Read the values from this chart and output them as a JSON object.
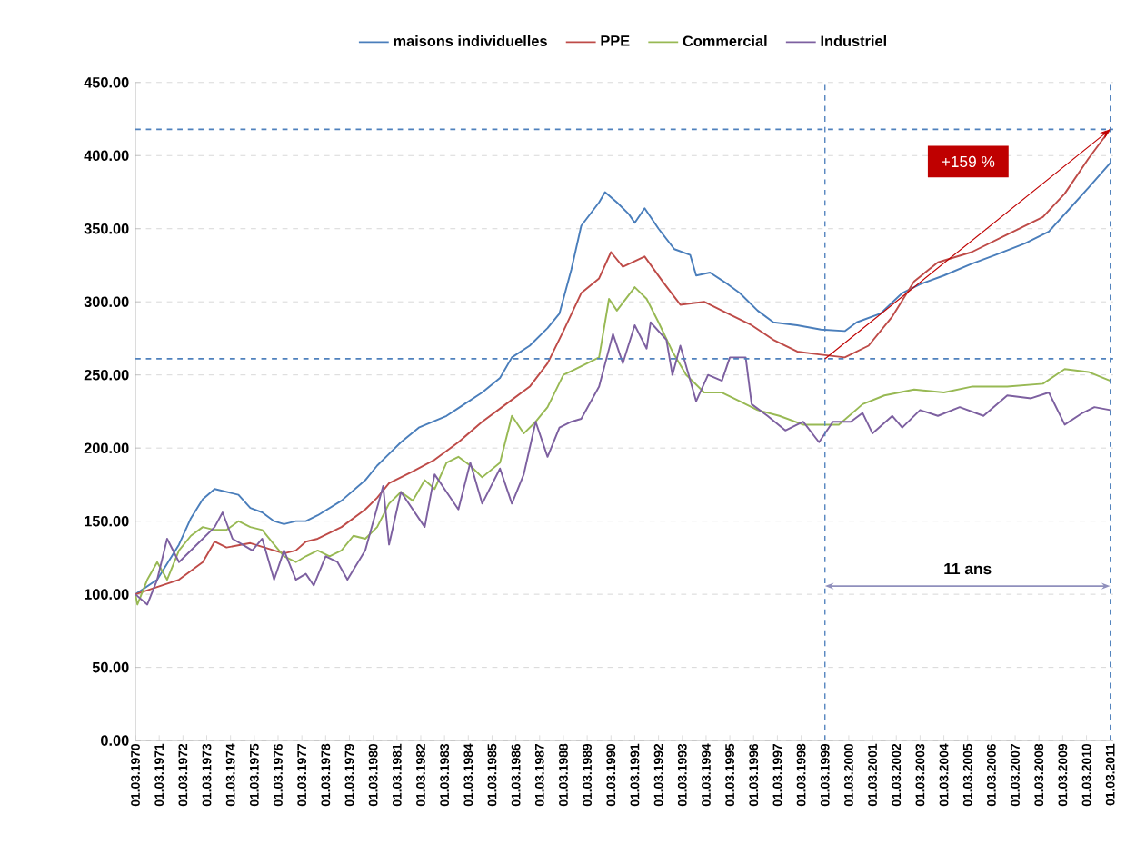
{
  "chart_data": {
    "type": "line",
    "xlim": [
      "1970-03-01",
      "2011-04-15"
    ],
    "ylim": [
      0,
      450
    ],
    "xticks": [
      {
        "value": "1970-03-01",
        "label": "01.03.1970"
      },
      {
        "value": "1971-03-01",
        "label": "01.03.1971"
      },
      {
        "value": "1972-03-01",
        "label": "01.03.1972"
      },
      {
        "value": "1973-03-01",
        "label": "01.03.1973"
      },
      {
        "value": "1974-03-01",
        "label": "01.03.1974"
      },
      {
        "value": "1975-03-01",
        "label": "01.03.1975"
      },
      {
        "value": "1976-03-01",
        "label": "01.03.1976"
      },
      {
        "value": "1977-03-01",
        "label": "01.03.1977"
      },
      {
        "value": "1978-03-01",
        "label": "01.03.1978"
      },
      {
        "value": "1979-03-01",
        "label": "01.03.1979"
      },
      {
        "value": "1980-03-01",
        "label": "01.03.1980"
      },
      {
        "value": "1981-03-01",
        "label": "01.03.1981"
      },
      {
        "value": "1982-03-01",
        "label": "01.03.1982"
      },
      {
        "value": "1983-03-01",
        "label": "01.03.1983"
      },
      {
        "value": "1984-03-01",
        "label": "01.03.1984"
      },
      {
        "value": "1985-03-01",
        "label": "01.03.1985"
      },
      {
        "value": "1986-03-01",
        "label": "01.03.1986"
      },
      {
        "value": "1987-03-01",
        "label": "01.03.1987"
      },
      {
        "value": "1988-03-01",
        "label": "01.03.1988"
      },
      {
        "value": "1989-03-01",
        "label": "01.03.1989"
      },
      {
        "value": "1990-03-01",
        "label": "01.03.1990"
      },
      {
        "value": "1991-03-01",
        "label": "01.03.1991"
      },
      {
        "value": "1992-03-01",
        "label": "01.03.1992"
      },
      {
        "value": "1993-03-01",
        "label": "01.03.1993"
      },
      {
        "value": "1994-03-01",
        "label": "01.03.1994"
      },
      {
        "value": "1995-03-01",
        "label": "01.03.1995"
      },
      {
        "value": "1996-03-01",
        "label": "01.03.1996"
      },
      {
        "value": "1997-03-01",
        "label": "01.03.1997"
      },
      {
        "value": "1998-03-01",
        "label": "01.03.1998"
      },
      {
        "value": "1999-03-01",
        "label": "01.03.1999"
      },
      {
        "value": "2000-03-01",
        "label": "01.03.2000"
      },
      {
        "value": "2001-03-01",
        "label": "01.03.2001"
      },
      {
        "value": "2002-03-01",
        "label": "01.03.2002"
      },
      {
        "value": "2003-03-01",
        "label": "01.03.2003"
      },
      {
        "value": "2004-03-01",
        "label": "01.03.2004"
      },
      {
        "value": "2005-03-01",
        "label": "01.03.2005"
      },
      {
        "value": "2006-03-01",
        "label": "01.03.2006"
      },
      {
        "value": "2007-03-01",
        "label": "01.03.2007"
      },
      {
        "value": "2008-03-01",
        "label": "01.03.2008"
      },
      {
        "value": "2009-03-01",
        "label": "01.03.2009"
      },
      {
        "value": "2010-03-01",
        "label": "01.03.2010"
      },
      {
        "value": "2011-03-01",
        "label": "01.03.2011"
      }
    ],
    "yticks": [
      {
        "value": 0,
        "label": "0.00"
      },
      {
        "value": 50,
        "label": "50.00"
      },
      {
        "value": 100,
        "label": "100.00"
      },
      {
        "value": 150,
        "label": "150.00"
      },
      {
        "value": 200,
        "label": "200.00"
      },
      {
        "value": 250,
        "label": "250.00"
      },
      {
        "value": 300,
        "label": "300.00"
      },
      {
        "value": 350,
        "label": "350.00"
      },
      {
        "value": 400,
        "label": "400.00"
      },
      {
        "value": 450,
        "label": "450.00"
      }
    ],
    "grid": "y",
    "legend": "top",
    "marker": "none",
    "line_style": "solid",
    "series": [
      {
        "name": "maisons individuelles",
        "color": "#4a7ebb",
        "x": [
          "1970-03",
          "1971-02",
          "1972-01",
          "1972-07",
          "1973-01",
          "1973-07",
          "1974-07",
          "1975-01",
          "1975-07",
          "1976-01",
          "1976-06",
          "1976-12",
          "1977-05",
          "1977-11",
          "1978-11",
          "1979-11",
          "1980-05",
          "1980-11",
          "1981-05",
          "1982-02",
          "1983-04",
          "1984-01",
          "1984-10",
          "1985-07",
          "1986-01",
          "1986-10",
          "1987-07",
          "1988-01",
          "1988-07",
          "1988-12",
          "1989-09",
          "1989-12",
          "1990-06",
          "1990-12",
          "1991-03",
          "1991-08",
          "1992-03",
          "1992-11",
          "1993-07",
          "1993-10",
          "1994-05",
          "1995-02",
          "1995-08",
          "1996-05",
          "1997-01",
          "1998-01",
          "1999-01",
          "2000-01",
          "2000-07",
          "2001-07",
          "2002-06",
          "2003-03",
          "2004-03",
          "2005-05",
          "2006-05",
          "2007-08",
          "2008-08",
          "2009-08",
          "2010-04",
          "2011-03"
        ],
        "values": [
          100,
          110,
          134,
          152,
          165,
          172,
          168,
          159,
          156,
          150,
          148,
          150,
          150,
          154,
          164,
          178,
          188,
          196,
          204,
          214,
          222,
          230,
          238,
          248,
          262,
          270,
          282,
          292,
          322,
          352,
          368,
          375,
          368,
          360,
          354,
          364,
          350,
          336,
          332,
          318,
          320,
          312,
          306,
          294,
          286,
          284,
          281,
          280,
          286,
          292,
          306,
          312,
          318,
          326,
          332,
          340,
          348,
          366,
          378,
          395
        ]
      },
      {
        "name": "PPE",
        "color": "#be4b48",
        "x": [
          "1970-03",
          "1971-02",
          "1972-01",
          "1973-01",
          "1973-07",
          "1974-01",
          "1975-01",
          "1976-01",
          "1976-06",
          "1976-12",
          "1977-05",
          "1977-11",
          "1978-11",
          "1979-11",
          "1980-05",
          "1980-11",
          "1981-11",
          "1982-10",
          "1983-10",
          "1984-10",
          "1985-10",
          "1986-10",
          "1987-07",
          "1988-03",
          "1988-12",
          "1989-09",
          "1990-03",
          "1990-09",
          "1991-08",
          "1992-05",
          "1993-02",
          "1994-02",
          "1995-02",
          "1996-02",
          "1997-01",
          "1998-01",
          "1998-12",
          "2000-01",
          "2001-01",
          "2002-01",
          "2002-12",
          "2003-12",
          "2005-05",
          "2006-11",
          "2008-05",
          "2009-04",
          "2010-04",
          "2011-03"
        ],
        "values": [
          100,
          105,
          110,
          122,
          136,
          132,
          135,
          130,
          128,
          130,
          136,
          138,
          146,
          158,
          166,
          176,
          184,
          192,
          204,
          218,
          230,
          242,
          258,
          280,
          306,
          316,
          334,
          324,
          331,
          314,
          298,
          300,
          292,
          284,
          274,
          266,
          264,
          262,
          270,
          290,
          314,
          327,
          334,
          346,
          358,
          374,
          398,
          418
        ]
      },
      {
        "name": "Commercial",
        "color": "#98b954",
        "x": [
          "1970-03",
          "1970-04",
          "1970-09",
          "1971-02",
          "1971-07",
          "1972-01",
          "1972-07",
          "1973-01",
          "1973-07",
          "1974-01",
          "1974-07",
          "1975-01",
          "1975-07",
          "1976-01",
          "1976-06",
          "1976-12",
          "1977-05",
          "1977-11",
          "1978-05",
          "1978-11",
          "1979-05",
          "1979-11",
          "1980-05",
          "1980-11",
          "1981-05",
          "1981-11",
          "1982-05",
          "1982-10",
          "1983-04",
          "1983-10",
          "1984-04",
          "1984-10",
          "1985-07",
          "1986-01",
          "1986-07",
          "1987-01",
          "1987-07",
          "1988-03",
          "1988-09",
          "1989-03",
          "1989-09",
          "1990-02",
          "1990-06",
          "1991-03",
          "1991-09",
          "1992-03",
          "1992-10",
          "1993-05",
          "1994-02",
          "1994-11",
          "1995-08",
          "1996-05",
          "1997-04",
          "1998-04",
          "1999-01",
          "1999-10",
          "2000-10",
          "2001-09",
          "2002-12",
          "2004-03",
          "2005-05",
          "2006-11",
          "2008-05",
          "2009-04",
          "2010-04",
          "2011-03"
        ],
        "values": [
          100,
          93,
          110,
          122,
          110,
          130,
          140,
          146,
          144,
          144,
          150,
          146,
          144,
          134,
          126,
          122,
          126,
          130,
          126,
          130,
          140,
          138,
          146,
          162,
          170,
          164,
          178,
          172,
          190,
          194,
          188,
          180,
          190,
          222,
          210,
          218,
          228,
          250,
          254,
          258,
          262,
          302,
          294,
          310,
          302,
          286,
          266,
          250,
          238,
          238,
          232,
          226,
          222,
          216,
          216,
          216,
          230,
          236,
          240,
          238,
          242,
          242,
          244,
          254,
          252,
          246
        ]
      },
      {
        "name": "Industriel",
        "color": "#7d60a0",
        "x": [
          "1970-03",
          "1970-09",
          "1971-02",
          "1971-07",
          "1972-01",
          "1972-07",
          "1973-01",
          "1973-07",
          "1973-11",
          "1974-04",
          "1974-09",
          "1975-02",
          "1975-07",
          "1976-01",
          "1976-06",
          "1976-12",
          "1977-05",
          "1977-09",
          "1978-03",
          "1978-09",
          "1979-02",
          "1979-11",
          "1980-08",
          "1980-11",
          "1981-05",
          "1981-11",
          "1982-05",
          "1982-10",
          "1983-04",
          "1983-10",
          "1984-04",
          "1984-10",
          "1985-07",
          "1986-01",
          "1986-07",
          "1987-01",
          "1987-07",
          "1988-01",
          "1988-07",
          "1988-12",
          "1989-09",
          "1990-04",
          "1990-09",
          "1991-03",
          "1991-09",
          "1991-11",
          "1992-07",
          "1992-10",
          "1993-02",
          "1993-10",
          "1994-04",
          "1994-11",
          "1995-03",
          "1995-11",
          "1996-02",
          "1996-10",
          "1997-07",
          "1998-04",
          "1998-12",
          "1999-07",
          "2000-04",
          "2000-10",
          "2001-03",
          "2002-01",
          "2002-06",
          "2003-03",
          "2003-12",
          "2004-11",
          "2005-11",
          "2006-11",
          "2007-11",
          "2008-08",
          "2009-04",
          "2010-01",
          "2010-07",
          "2011-03"
        ],
        "values": [
          100,
          93,
          110,
          138,
          122,
          130,
          138,
          146,
          156,
          138,
          134,
          130,
          138,
          110,
          130,
          110,
          114,
          106,
          126,
          122,
          110,
          130,
          174,
          134,
          170,
          158,
          146,
          182,
          170,
          158,
          190,
          162,
          186,
          162,
          182,
          218,
          194,
          214,
          218,
          220,
          242,
          278,
          258,
          284,
          268,
          286,
          274,
          250,
          270,
          232,
          250,
          246,
          262,
          262,
          230,
          222,
          212,
          218,
          204,
          218,
          218,
          224,
          210,
          222,
          214,
          226,
          222,
          228,
          222,
          236,
          234,
          238,
          216,
          224,
          228,
          226
        ]
      }
    ],
    "ref_lines": [
      {
        "axis": "y",
        "value": 418,
        "color": "#4f81bd",
        "line_style": "dashed"
      },
      {
        "axis": "y",
        "value": 261,
        "color": "#4f81bd",
        "line_style": "dashed"
      },
      {
        "axis": "x",
        "value": "1999-03-01",
        "color": "#4f81bd",
        "line_style": "dashed"
      },
      {
        "axis": "x",
        "value": "2011-03-01",
        "color": "#4f81bd",
        "line_style": "dashed"
      }
    ],
    "annotations": [
      "+159 %",
      "11 ans"
    ]
  }
}
